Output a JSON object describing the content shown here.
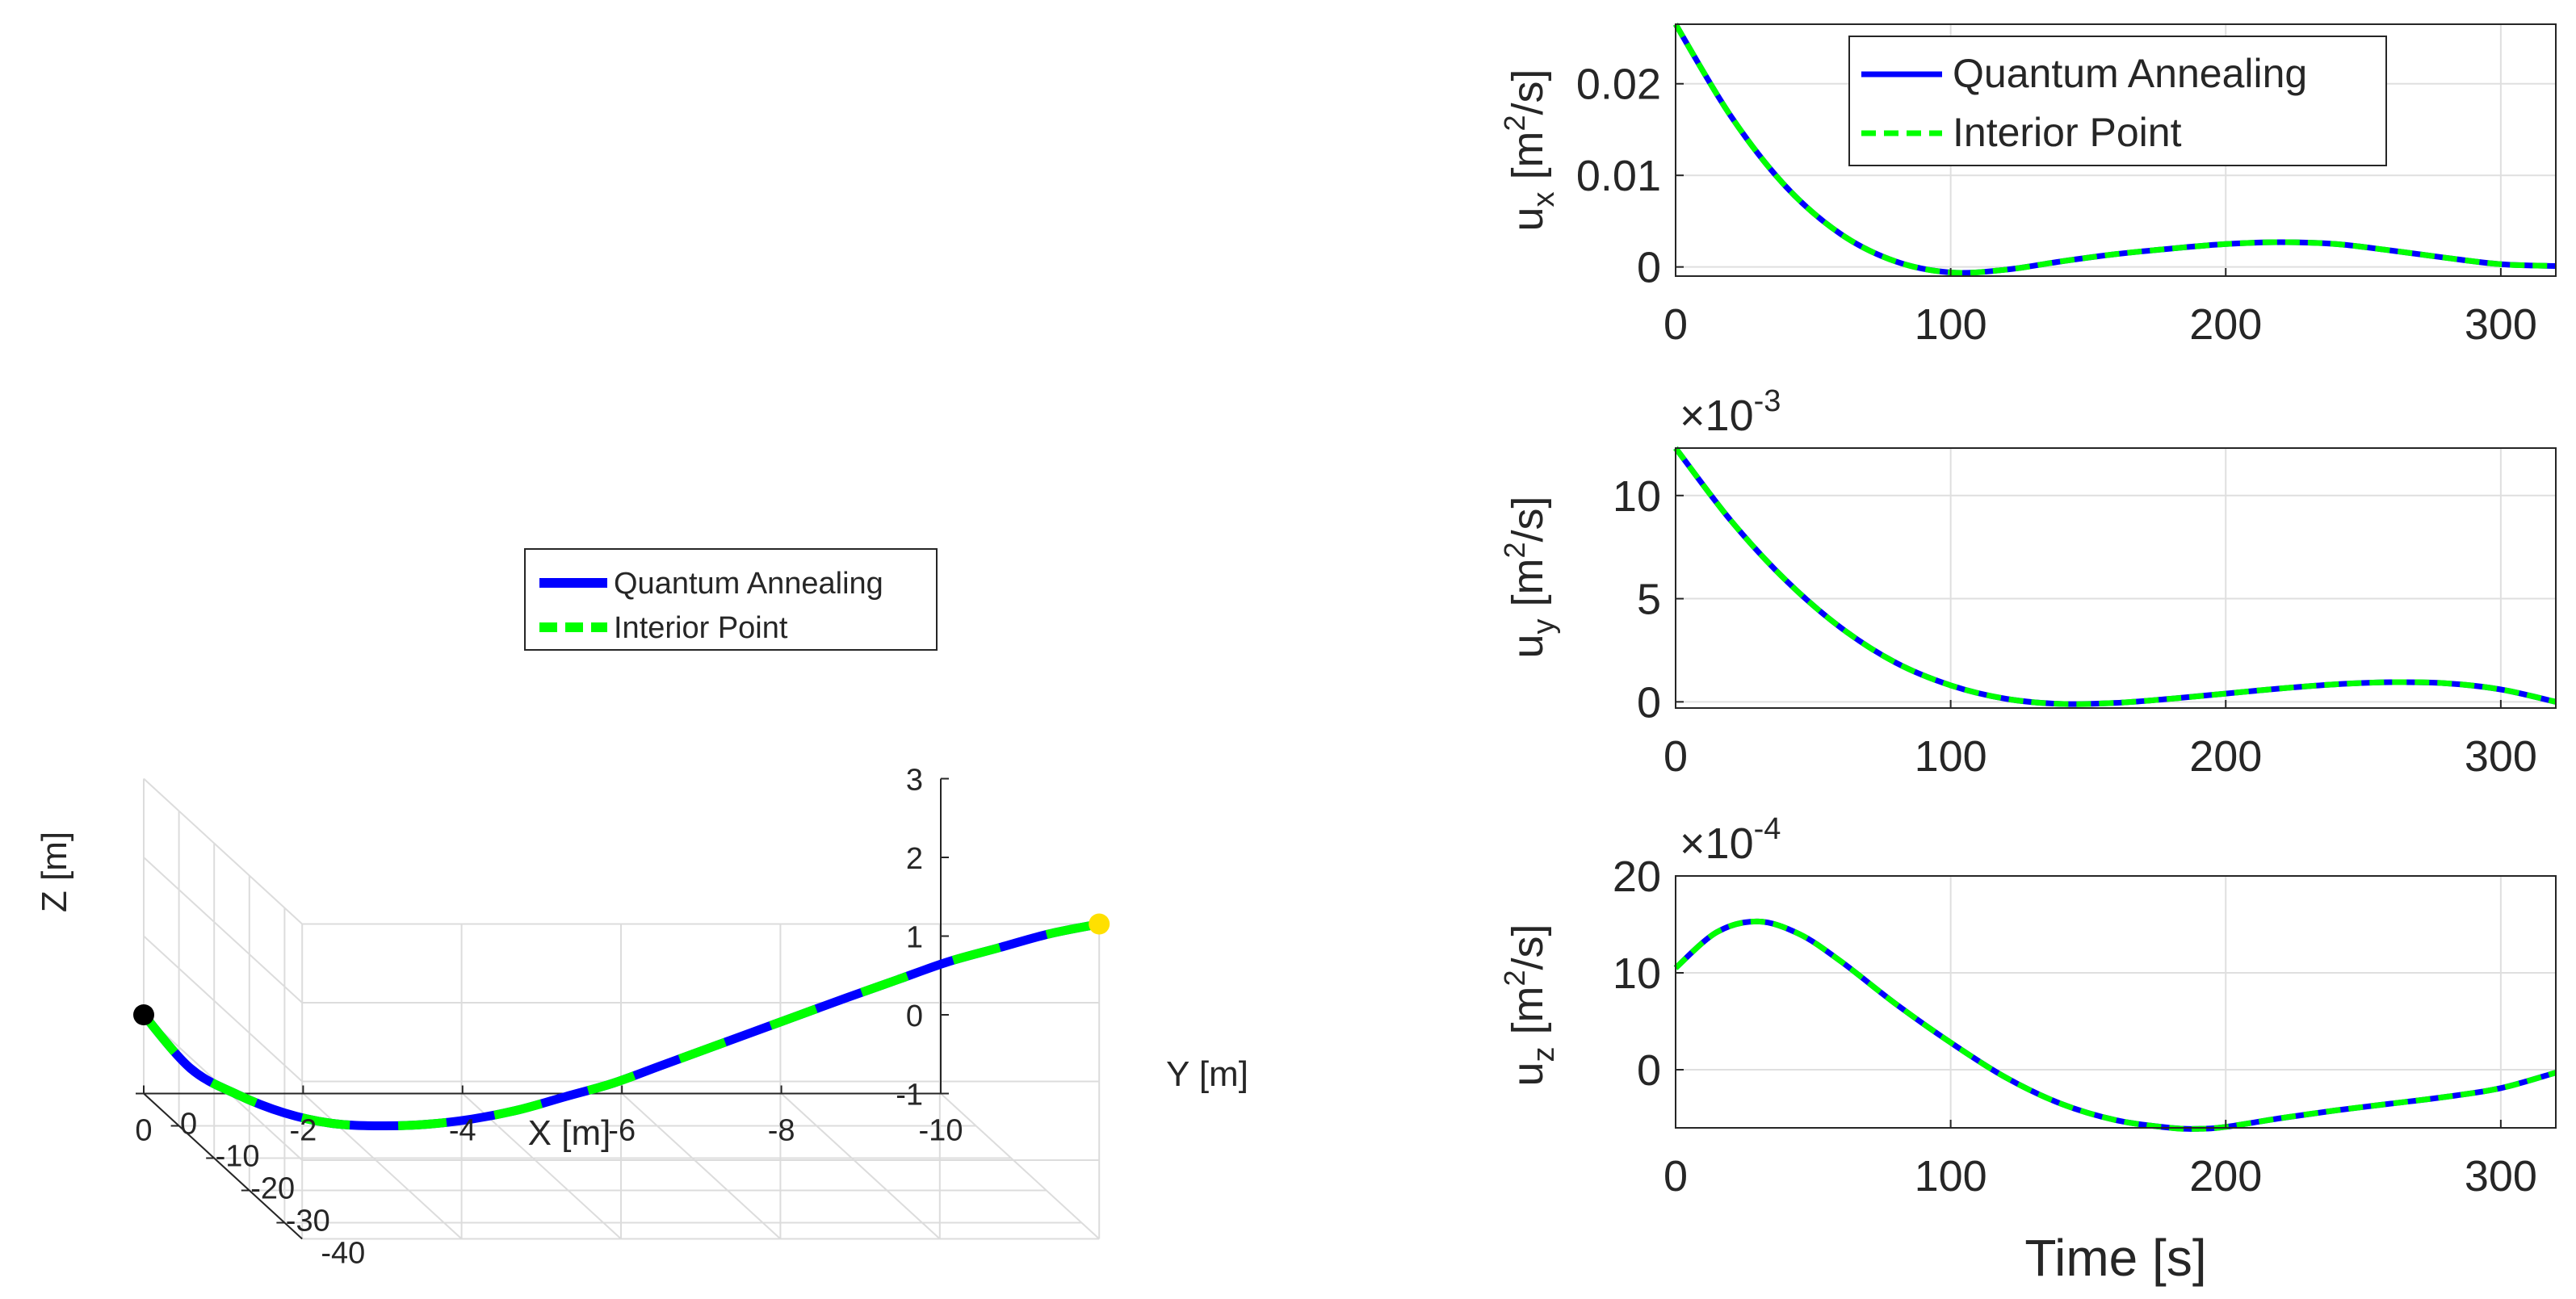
{
  "chart_data": [
    {
      "type": "line",
      "subtype": "3d-trajectory",
      "xlabel": "X [m]",
      "ylabel": "Y [m]",
      "zlabel": "Z [m]",
      "xlim": [
        -10,
        0
      ],
      "ylim": [
        -45,
        0
      ],
      "zlim": [
        -1,
        3
      ],
      "x_ticks": [
        "0",
        "-2",
        "-4",
        "-6",
        "-8",
        "-10"
      ],
      "y_ticks": [
        "0",
        "-10",
        "-20",
        "-30",
        "-40"
      ],
      "z_ticks": [
        "3",
        "2",
        "1",
        "0",
        "-1"
      ],
      "grid": true,
      "legend_position": "upper-center",
      "legend": [
        "Quantum Annealing",
        "Interior Point"
      ],
      "start_marker": {
        "x": 0,
        "y": 0,
        "z": 0,
        "color": "#000000"
      },
      "end_marker": {
        "x": -10,
        "y": -45,
        "z": 3,
        "color": "#ffe000"
      },
      "series": [
        {
          "name": "Quantum Annealing",
          "color": "#0000ff",
          "style": "solid",
          "points": [
            [
              0,
              0,
              0
            ],
            [
              -0.5,
              -2,
              -0.6
            ],
            [
              -1,
              -4,
              -0.85
            ],
            [
              -1.5,
              -6,
              -1.0
            ],
            [
              -2,
              -8,
              -1.05
            ],
            [
              -2.5,
              -10,
              -1.0
            ],
            [
              -3,
              -12,
              -0.9
            ],
            [
              -3.5,
              -14,
              -0.75
            ],
            [
              -4,
              -16,
              -0.55
            ],
            [
              -4.5,
              -18,
              -0.3
            ],
            [
              -5,
              -20,
              -0.05
            ],
            [
              -5.5,
              -22,
              0.25
            ],
            [
              -6,
              -24,
              0.55
            ],
            [
              -6.5,
              -26,
              0.85
            ],
            [
              -7,
              -28,
              1.15
            ],
            [
              -7.5,
              -30,
              1.45
            ],
            [
              -8,
              -33,
              1.8
            ],
            [
              -8.5,
              -36,
              2.15
            ],
            [
              -9,
              -39,
              2.45
            ],
            [
              -9.5,
              -42,
              2.75
            ],
            [
              -10,
              -45,
              3.0
            ]
          ]
        },
        {
          "name": "Interior Point",
          "color": "#00ff00",
          "style": "dashed",
          "points": [
            [
              0,
              0,
              0
            ],
            [
              -0.5,
              -2,
              -0.6
            ],
            [
              -1,
              -4,
              -0.85
            ],
            [
              -1.5,
              -6,
              -1.0
            ],
            [
              -2,
              -8,
              -1.05
            ],
            [
              -2.5,
              -10,
              -1.0
            ],
            [
              -3,
              -12,
              -0.9
            ],
            [
              -3.5,
              -14,
              -0.75
            ],
            [
              -4,
              -16,
              -0.55
            ],
            [
              -4.5,
              -18,
              -0.3
            ],
            [
              -5,
              -20,
              -0.05
            ],
            [
              -5.5,
              -22,
              0.25
            ],
            [
              -6,
              -24,
              0.55
            ],
            [
              -6.5,
              -26,
              0.85
            ],
            [
              -7,
              -28,
              1.15
            ],
            [
              -7.5,
              -30,
              1.45
            ],
            [
              -8,
              -33,
              1.8
            ],
            [
              -8.5,
              -36,
              2.15
            ],
            [
              -9,
              -39,
              2.45
            ],
            [
              -9.5,
              -42,
              2.75
            ],
            [
              -10,
              -45,
              3.0
            ]
          ]
        }
      ]
    },
    {
      "type": "line",
      "ylabel_base": "u",
      "ylabel_sub": "x",
      "ylabel_unit_pre": " [m",
      "ylabel_unit_sup": "2",
      "ylabel_unit_post": "/s]",
      "xlim": [
        0,
        320
      ],
      "ylim": [
        -0.001,
        0.0265
      ],
      "y_ticks": [
        {
          "v": 0,
          "label": "0"
        },
        {
          "v": 0.01,
          "label": "0.01"
        },
        {
          "v": 0.02,
          "label": "0.02"
        }
      ],
      "x_ticks": [
        {
          "v": 0,
          "label": "0"
        },
        {
          "v": 100,
          "label": "100"
        },
        {
          "v": 200,
          "label": "200"
        },
        {
          "v": 300,
          "label": "300"
        }
      ],
      "grid": true,
      "legend_position": "top-center",
      "legend": [
        "Quantum Annealing",
        "Interior Point"
      ],
      "x": [
        0,
        20,
        40,
        60,
        80,
        100,
        120,
        140,
        160,
        180,
        200,
        220,
        240,
        260,
        280,
        300,
        320
      ],
      "series": [
        {
          "name": "Quantum Annealing",
          "color": "#0000ff",
          "style": "solid",
          "values": [
            0.0265,
            0.0165,
            0.0088,
            0.0036,
            0.0006,
            -0.0006,
            -0.0003,
            0.0006,
            0.0014,
            0.002,
            0.0025,
            0.0027,
            0.0025,
            0.0018,
            0.001,
            0.0003,
            0.0001
          ]
        },
        {
          "name": "Interior Point",
          "color": "#00ff00",
          "style": "dashed",
          "values": [
            0.0265,
            0.0165,
            0.0088,
            0.0036,
            0.0006,
            -0.0006,
            -0.0003,
            0.0006,
            0.0014,
            0.002,
            0.0025,
            0.0027,
            0.0025,
            0.0018,
            0.001,
            0.0003,
            0.0001
          ]
        }
      ]
    },
    {
      "type": "line",
      "ylabel_base": "u",
      "ylabel_sub": "y",
      "ylabel_unit_pre": " [m",
      "ylabel_unit_sup": "2",
      "ylabel_unit_post": "/s]",
      "exponent_prefix": "×10",
      "exponent_value": "-3",
      "xlim": [
        0,
        320
      ],
      "ylim": [
        -0.3,
        12.3
      ],
      "y_ticks": [
        {
          "v": 0,
          "label": "0"
        },
        {
          "v": 5,
          "label": "5"
        },
        {
          "v": 10,
          "label": "10"
        }
      ],
      "x_ticks": [
        {
          "v": 0,
          "label": "0"
        },
        {
          "v": 100,
          "label": "100"
        },
        {
          "v": 200,
          "label": "200"
        },
        {
          "v": 300,
          "label": "300"
        }
      ],
      "grid": true,
      "x": [
        0,
        20,
        40,
        60,
        80,
        100,
        120,
        140,
        160,
        180,
        200,
        220,
        240,
        260,
        280,
        300,
        320
      ],
      "series": [
        {
          "name": "Quantum Annealing",
          "color": "#0000ff",
          "style": "solid",
          "values": [
            12.3,
            8.8,
            5.9,
            3.6,
            1.9,
            0.8,
            0.15,
            -0.1,
            -0.05,
            0.15,
            0.4,
            0.65,
            0.85,
            0.95,
            0.9,
            0.6,
            0.0
          ]
        },
        {
          "name": "Interior Point",
          "color": "#00ff00",
          "style": "dashed",
          "values": [
            12.3,
            8.8,
            5.9,
            3.6,
            1.9,
            0.8,
            0.15,
            -0.1,
            -0.05,
            0.15,
            0.4,
            0.65,
            0.85,
            0.95,
            0.9,
            0.6,
            0.0
          ]
        }
      ]
    },
    {
      "type": "line",
      "ylabel_base": "u",
      "ylabel_sub": "z",
      "ylabel_unit_pre": " [m",
      "ylabel_unit_sup": "2",
      "ylabel_unit_post": "/s]",
      "exponent_prefix": "×10",
      "exponent_value": "-4",
      "xlabel": "Time [s]",
      "xlim": [
        0,
        320
      ],
      "ylim": [
        -6,
        20
      ],
      "y_ticks": [
        {
          "v": 0,
          "label": "0"
        },
        {
          "v": 10,
          "label": "10"
        },
        {
          "v": 20,
          "label": "20"
        }
      ],
      "x_ticks": [
        {
          "v": 0,
          "label": "0"
        },
        {
          "v": 100,
          "label": "100"
        },
        {
          "v": 200,
          "label": "200"
        },
        {
          "v": 300,
          "label": "300"
        }
      ],
      "grid": true,
      "x": [
        0,
        15,
        30,
        45,
        60,
        80,
        100,
        120,
        140,
        160,
        180,
        190,
        200,
        220,
        240,
        260,
        280,
        300,
        320
      ],
      "series": [
        {
          "name": "Quantum Annealing",
          "color": "#0000ff",
          "style": "solid",
          "values": [
            10.5,
            14.2,
            15.3,
            14.0,
            11.2,
            6.8,
            2.8,
            -0.8,
            -3.5,
            -5.2,
            -6.0,
            -6.1,
            -5.9,
            -5.0,
            -4.2,
            -3.5,
            -2.8,
            -1.9,
            -0.3
          ]
        },
        {
          "name": "Interior Point",
          "color": "#00ff00",
          "style": "dashed",
          "values": [
            10.5,
            14.2,
            15.3,
            14.0,
            11.2,
            6.8,
            2.8,
            -0.8,
            -3.5,
            -5.2,
            -6.0,
            -6.1,
            -5.9,
            -5.0,
            -4.2,
            -3.5,
            -2.8,
            -1.9,
            -0.3
          ]
        }
      ]
    }
  ]
}
